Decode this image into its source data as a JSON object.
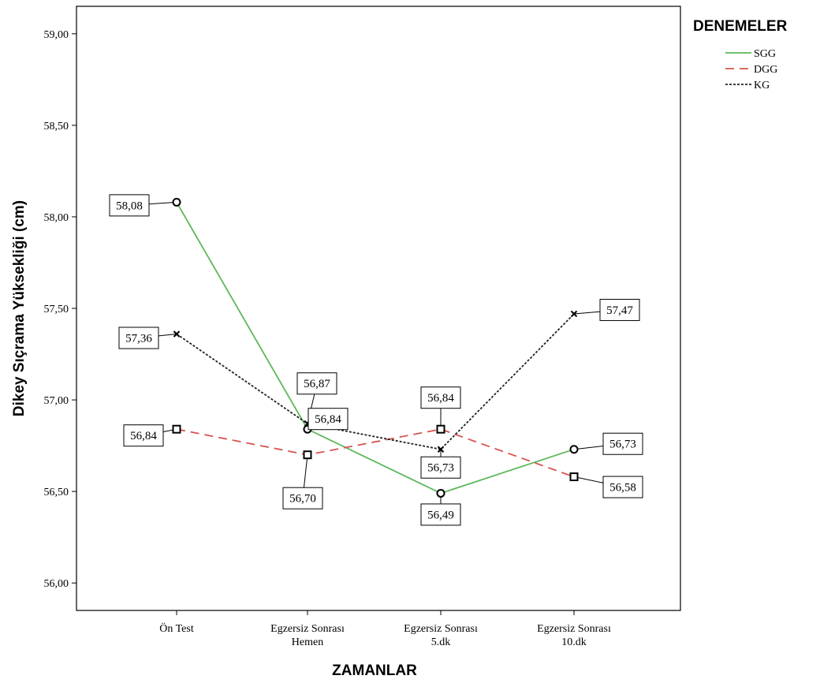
{
  "chart_data": {
    "type": "line",
    "categories": [
      [
        "Ön Test"
      ],
      [
        "Egzersiz Sonrası",
        "Hemen"
      ],
      [
        "Egzersiz Sonrası",
        "5.dk"
      ],
      [
        "Egzersiz Sonrası",
        "10.dk"
      ]
    ],
    "xlabel": "ZAMANLAR",
    "ylabel": "Dikey Sıçrama Yüksekliği (cm)",
    "ylim": [
      55.85,
      59.15
    ],
    "yticks": [
      "56,00",
      "56,50",
      "57,00",
      "57,50",
      "58,00",
      "58,50",
      "59,00"
    ],
    "legend_title": "DENEMELER",
    "legend_position": "top-right",
    "grid": false,
    "series": [
      {
        "name": "SGG",
        "values": [
          58.08,
          56.84,
          56.49,
          56.73
        ],
        "labels": [
          "58,08",
          "56,84",
          "56,49",
          "56,73"
        ],
        "color": "#5cb85c",
        "dash": "solid",
        "marker": "circle"
      },
      {
        "name": "DGG",
        "values": [
          56.84,
          56.7,
          56.84,
          56.58
        ],
        "labels": [
          "56,84",
          "56,70",
          "56,84",
          "56,58"
        ],
        "color": "#d9534f",
        "dash": "dashed",
        "marker": "square"
      },
      {
        "name": "KG",
        "values": [
          57.36,
          56.87,
          56.73,
          57.47
        ],
        "labels": [
          "57,36",
          "56,87",
          "56,73",
          "57,47"
        ],
        "color": "#222222",
        "dash": "dotted",
        "marker": "cross"
      }
    ]
  }
}
